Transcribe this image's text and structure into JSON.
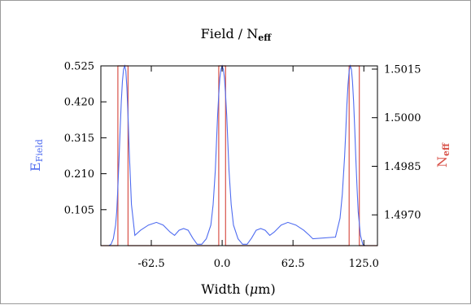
{
  "chart_data": {
    "type": "line",
    "title_main": "Field / N",
    "title_sub": "eff",
    "xlabel_main": "Width (",
    "xlabel_mu": "μ",
    "xlabel_end": "m)",
    "ylabel_left_main": "E",
    "ylabel_left_sub": "Field",
    "ylabel_right_main": "N",
    "ylabel_right_sub": "eff",
    "xlim": [
      -107,
      137
    ],
    "ylim_left": [
      0,
      0.525
    ],
    "ylim_right": [
      1.49605,
      1.5016
    ],
    "x_ticks": [
      {
        "value": -62.5,
        "label": "-62.5"
      },
      {
        "value": 0,
        "label": "0.0"
      },
      {
        "value": 62.5,
        "label": "62.5"
      },
      {
        "value": 125,
        "label": "125.0"
      }
    ],
    "y_left_ticks": [
      {
        "value": 0.105,
        "label": "0.105"
      },
      {
        "value": 0.21,
        "label": "0.210"
      },
      {
        "value": 0.315,
        "label": "0.315"
      },
      {
        "value": 0.42,
        "label": "0.420"
      },
      {
        "value": 0.525,
        "label": "0.525"
      }
    ],
    "y_right_ticks": [
      {
        "value": 1.497,
        "label": "1.4970"
      },
      {
        "value": 1.4985,
        "label": "1.4985"
      },
      {
        "value": 1.5,
        "label": "1.5000"
      },
      {
        "value": 1.5015,
        "label": "1.5015"
      }
    ],
    "series": [
      {
        "axis": "left",
        "color": "#4f6cf0",
        "x": [
          -107,
          -100,
          -98,
          -96,
          -94,
          -93,
          -92,
          -91,
          -90,
          -89,
          -88,
          -87,
          -86,
          -85,
          -84,
          -83,
          -82,
          -80,
          -77,
          -72,
          -65,
          -58,
          -52,
          -46,
          -42,
          -38,
          -34,
          -30,
          -26,
          -22,
          -18,
          -14,
          -10,
          -8,
          -6,
          -5,
          -4,
          -3,
          -2,
          -1,
          0,
          1,
          2,
          3,
          4,
          5,
          6,
          8,
          10,
          14,
          18,
          22,
          26,
          30,
          34,
          38,
          42,
          46,
          52,
          58,
          65,
          72,
          77,
          80,
          100,
          104,
          106,
          108,
          109,
          110,
          111,
          112,
          113,
          114,
          115,
          116,
          117,
          118,
          119,
          120,
          122,
          124,
          126,
          137
        ],
        "y": [
          0,
          0,
          0.004,
          0.02,
          0.06,
          0.1,
          0.17,
          0.25,
          0.34,
          0.42,
          0.48,
          0.515,
          0.525,
          0.51,
          0.46,
          0.38,
          0.28,
          0.12,
          0.03,
          0.045,
          0.06,
          0.068,
          0.06,
          0.04,
          0.03,
          0.045,
          0.05,
          0.045,
          0.022,
          0.004,
          0.004,
          0.02,
          0.06,
          0.12,
          0.22,
          0.3,
          0.38,
          0.44,
          0.49,
          0.515,
          0.525,
          0.515,
          0.49,
          0.44,
          0.38,
          0.3,
          0.22,
          0.12,
          0.06,
          0.02,
          0.004,
          0.004,
          0.022,
          0.045,
          0.05,
          0.045,
          0.03,
          0.04,
          0.06,
          0.068,
          0.06,
          0.045,
          0.03,
          0.02,
          0.025,
          0.08,
          0.15,
          0.26,
          0.33,
          0.41,
          0.47,
          0.51,
          0.525,
          0.515,
          0.48,
          0.42,
          0.34,
          0.25,
          0.17,
          0.1,
          0.03,
          0.004,
          0,
          0
        ]
      },
      {
        "axis": "right",
        "color": "#d8534a",
        "segments": [
          [
            -92,
            -83
          ],
          [
            -3,
            3
          ],
          [
            112,
            121
          ]
        ],
        "high": 1.5016,
        "low": 1.49605
      }
    ]
  }
}
